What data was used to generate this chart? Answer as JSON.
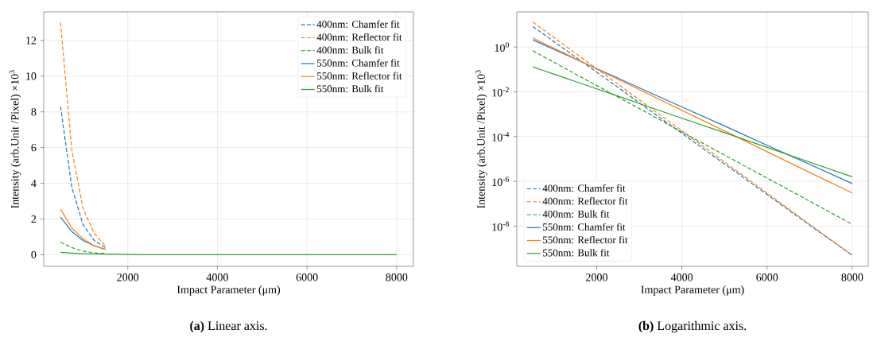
{
  "chart_data": [
    {
      "type": "line",
      "xlabel": "Impact Parameter (μm)",
      "ylabel": "Intensity (arb.Unit /Pixel) ×10$^{3}$",
      "x": [
        500,
        750,
        1000,
        1250,
        1500,
        2000,
        2500,
        3000,
        4000,
        5000,
        6000,
        7000,
        8000
      ],
      "series": [
        {
          "name": "400nm: Chamfer fit",
          "color": "#1f77b4",
          "line_style": "dashed",
          "values": [
            8.3,
            3.8,
            1.7,
            0.8,
            0.4,
            null,
            null,
            null,
            null,
            null,
            null,
            null,
            null
          ]
        },
        {
          "name": "400nm: Reflector fit",
          "color": "#ff7f0e",
          "line_style": "dashed",
          "values": [
            13,
            5.9,
            2.6,
            1.2,
            0.5,
            null,
            null,
            null,
            null,
            null,
            null,
            null,
            null
          ]
        },
        {
          "name": "400nm: Bulk fit",
          "color": "#2ca02c",
          "line_style": "dashed",
          "values": [
            0.7,
            0.4,
            0.2,
            0.1,
            0.06,
            null,
            null,
            null,
            null,
            null,
            null,
            null,
            null
          ]
        },
        {
          "name": "550nm: Chamfer fit",
          "color": "#1f77b4",
          "line_style": "solid",
          "values": [
            2.1,
            1.3,
            0.8,
            0.5,
            0.3,
            null,
            null,
            null,
            null,
            null,
            null,
            null,
            null
          ]
        },
        {
          "name": "550nm: Reflector fit",
          "color": "#ff7f0e",
          "line_style": "solid",
          "values": [
            2.55,
            1.5,
            0.9,
            0.5,
            0.3,
            null,
            null,
            null,
            null,
            null,
            null,
            null,
            null
          ]
        },
        {
          "name": "550nm: Bulk fit",
          "color": "#2ca02c",
          "line_style": "solid",
          "values": [
            0.13,
            0.09,
            0.06,
            0.04,
            0.03,
            0.01,
            0,
            0,
            0,
            0,
            0,
            0,
            0
          ]
        }
      ],
      "xlim": [
        125,
        8375
      ],
      "ylim": [
        -0.65,
        13.6
      ],
      "xticks": [
        2000,
        4000,
        6000,
        8000
      ],
      "yticks": [
        0,
        2,
        4,
        6,
        8,
        10,
        12
      ],
      "grid": true,
      "legend": "top right",
      "annotations": [
        "**(a)** Linear axis."
      ]
    },
    {
      "type": "line",
      "xlabel": "Impact Parameter (μm)",
      "ylabel": "Intensity (arb.Unit /Pixel) ×10$^{3}$",
      "x": [
        500,
        750,
        1000,
        1250,
        1500,
        2000,
        2500,
        3000,
        4000,
        5000,
        6000,
        7000,
        8000
      ],
      "series": [
        {
          "name": "400nm: Chamfer fit",
          "color": "#1f77b4",
          "line_style": "dashed",
          "values": [
            8.3,
            3.8,
            1.73,
            0.79,
            0.36,
            0.075,
            0.016,
            0.0032,
            0.00014,
            6e-06,
            2.6e-07,
            1.1e-08,
            5e-10
          ]
        },
        {
          "name": "400nm: Reflector fit",
          "color": "#ff7f0e",
          "line_style": "dashed",
          "values": [
            13,
            5.85,
            2.63,
            1.18,
            0.53,
            0.107,
            0.022,
            0.0044,
            0.00018,
            7.4e-06,
            3e-07,
            1.2e-08,
            5e-10
          ]
        },
        {
          "name": "400nm: Bulk fit",
          "color": "#2ca02c",
          "line_style": "dashed",
          "values": [
            0.68,
            0.375,
            0.207,
            0.114,
            0.063,
            0.019,
            0.0058,
            0.0018,
            0.00016,
            1.5e-05,
            1.4e-06,
            1.3e-07,
            1.2e-08
          ]
        },
        {
          "name": "550nm: Chamfer fit",
          "color": "#1f77b4",
          "line_style": "solid",
          "values": [
            2.1,
            1.28,
            0.78,
            0.48,
            0.29,
            0.109,
            0.041,
            0.015,
            0.0021,
            0.0003,
            4.1e-05,
            5.7e-06,
            8e-07
          ]
        },
        {
          "name": "550nm: Reflector fit",
          "color": "#ff7f0e",
          "line_style": "solid",
          "values": [
            2.55,
            1.5,
            0.88,
            0.52,
            0.3,
            0.105,
            0.036,
            0.0125,
            0.0015,
            0.00018,
            2.1e-05,
            2.5e-06,
            3e-07
          ]
        },
        {
          "name": "550nm: Bulk fit",
          "color": "#2ca02c",
          "line_style": "solid",
          "values": [
            0.13,
            0.089,
            0.061,
            0.042,
            0.029,
            0.0135,
            0.0064,
            0.003,
            0.00066,
            0.00015,
            3.3e-05,
            7.2e-06,
            1.6e-06
          ]
        }
      ],
      "xlim": [
        125,
        8375
      ],
      "ylim": [
        1.6e-10,
        37
      ],
      "log": "y",
      "xticks": [
        2000,
        4000,
        6000,
        8000
      ],
      "yticks": [
        {
          "value": 1e-08,
          "label": "10$^{-8}$"
        },
        {
          "value": 1e-06,
          "label": "10$^{-6}$"
        },
        {
          "value": 0.0001,
          "label": "10$^{-4}$"
        },
        {
          "value": 0.01,
          "label": "10$^{-2}$"
        },
        {
          "value": 1,
          "label": "10$^{0}$"
        }
      ],
      "grid": true,
      "legend": "bottom left",
      "annotations": [
        "**(b)** Logarithmic axis."
      ]
    }
  ]
}
